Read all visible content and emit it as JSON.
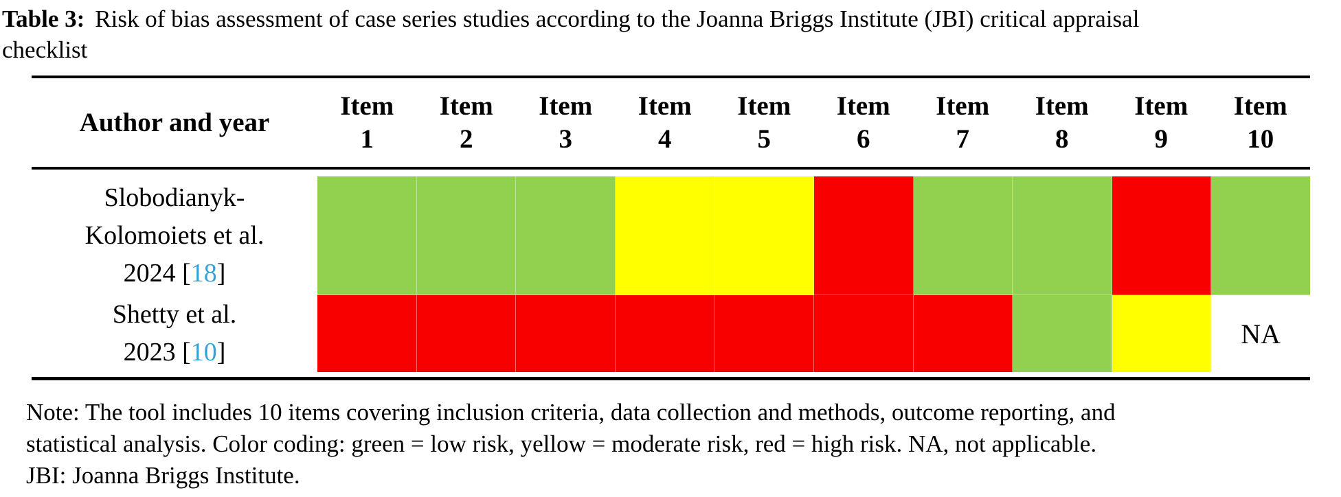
{
  "caption": {
    "label": "Table 3:",
    "line1": "Risk of bias assessment of case series studies according to the Joanna Briggs Institute (JBI) critical appraisal",
    "line2": "checklist"
  },
  "colors": {
    "green": "#92D050",
    "yellow": "#FFFF00",
    "red": "#F80000",
    "na": "#FFFFFF",
    "ref_blue": "#35A3DB"
  },
  "table": {
    "author_header": "Author and year",
    "item_word": "Item",
    "item_numbers": [
      "1",
      "2",
      "3",
      "4",
      "5",
      "6",
      "7",
      "8",
      "9",
      "10"
    ],
    "na_label": "NA",
    "rows": [
      {
        "author_lines": [
          "Slobodianyk-",
          "Kolomoiets et al.",
          "2024 [18]"
        ],
        "ratings": [
          "green",
          "green",
          "green",
          "yellow",
          "yellow",
          "red",
          "green",
          "green",
          "red",
          "green"
        ]
      },
      {
        "author_lines": [
          "Shetty et al.",
          "2023 [10]"
        ],
        "ratings": [
          "red",
          "red",
          "red",
          "red",
          "red",
          "red",
          "red",
          "green",
          "yellow",
          "na"
        ]
      }
    ]
  },
  "note": {
    "line1": "Note: The tool includes 10 items covering inclusion criteria, data collection and methods, outcome reporting, and",
    "line2": "statistical analysis. Color coding: green = low risk, yellow = moderate risk, red = high risk. NA, not applicable.",
    "line3": "JBI: Joanna Briggs Institute."
  }
}
